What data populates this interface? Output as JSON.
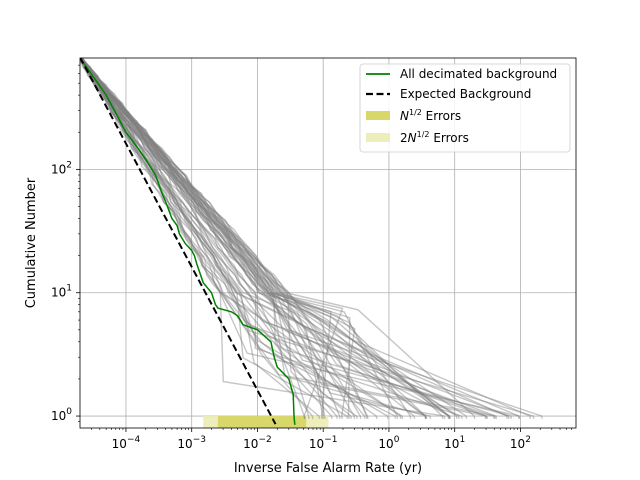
{
  "chart_data": {
    "type": "line",
    "title": "",
    "xlabel": "Inverse False Alarm Rate (yr)",
    "ylabel": "Cumulative Number",
    "x_scale": "log",
    "y_scale": "log",
    "xlim": [
      2e-05,
      700
    ],
    "ylim": [
      0.8,
      800
    ],
    "grid": true,
    "legend_position": "top-right",
    "x_ticks": [
      {
        "value": 0.0001,
        "mantissa": "10",
        "exp": "−4"
      },
      {
        "value": 0.001,
        "mantissa": "10",
        "exp": "−3"
      },
      {
        "value": 0.01,
        "mantissa": "10",
        "exp": "−2"
      },
      {
        "value": 0.1,
        "mantissa": "10",
        "exp": "−1"
      },
      {
        "value": 1,
        "mantissa": "10",
        "exp": "0"
      },
      {
        "value": 10,
        "mantissa": "10",
        "exp": "1"
      },
      {
        "value": 100,
        "mantissa": "10",
        "exp": "2"
      }
    ],
    "y_ticks": [
      {
        "value": 1,
        "mantissa": "10",
        "exp": "0"
      },
      {
        "value": 10,
        "mantissa": "10",
        "exp": "1"
      },
      {
        "value": 100,
        "mantissa": "10",
        "exp": "2"
      }
    ],
    "legend": [
      {
        "key": "green",
        "label": "All decimated background"
      },
      {
        "key": "expected",
        "label": "Expected Background"
      },
      {
        "key": "n_half",
        "label_pre": "",
        "label_sym": "N",
        "label_sup": "1/2",
        "label_post": " Errors"
      },
      {
        "key": "two_n_half",
        "label_pre": "2",
        "label_sym": "N",
        "label_sup": "1/2",
        "label_post": " Errors"
      }
    ],
    "colors": {
      "green": "#008000",
      "expected": "#000000",
      "grey_trials": "#808080",
      "n_half_band": "#d8d86a",
      "two_n_half_band": "#eeeebb",
      "grid": "#b0b0b0"
    },
    "series": [
      {
        "name": "All decimated background",
        "x": [
          2e-05,
          5e-05,
          0.0001,
          0.00015,
          0.0002,
          0.00028,
          0.00035,
          0.0004,
          0.0005,
          0.0006,
          0.00065,
          0.0008,
          0.001,
          0.0011,
          0.0012,
          0.0015,
          0.002,
          0.0023,
          0.0025,
          0.004,
          0.005,
          0.0055,
          0.006,
          0.01,
          0.016,
          0.018,
          0.02,
          0.03,
          0.035,
          0.036,
          0.037
        ],
        "y": [
          800,
          400,
          200,
          150,
          120,
          90,
          65,
          55,
          40,
          35,
          30,
          25,
          22,
          20,
          17,
          12,
          10,
          8,
          7.5,
          7,
          6.5,
          6,
          5.5,
          5,
          4,
          3,
          2.5,
          2,
          1.5,
          1,
          0.85
        ]
      },
      {
        "name": "Expected Background",
        "x": [
          2e-05,
          0.0188
        ],
        "y": [
          810,
          0.86
        ]
      }
    ],
    "background_trials": {
      "count": 60,
      "color": "#808080",
      "spread_low_x": [
        0.0025,
        0.03
      ],
      "spread_high_x": [
        0.05,
        220
      ]
    },
    "error_bands": {
      "n_half": {
        "x_range": [
          0.0025,
          0.055
        ],
        "y_range": [
          0.8,
          1.0
        ]
      },
      "two_n_half": {
        "x_range": [
          0.0015,
          0.12
        ],
        "y_range": [
          0.8,
          1.0
        ]
      }
    }
  }
}
